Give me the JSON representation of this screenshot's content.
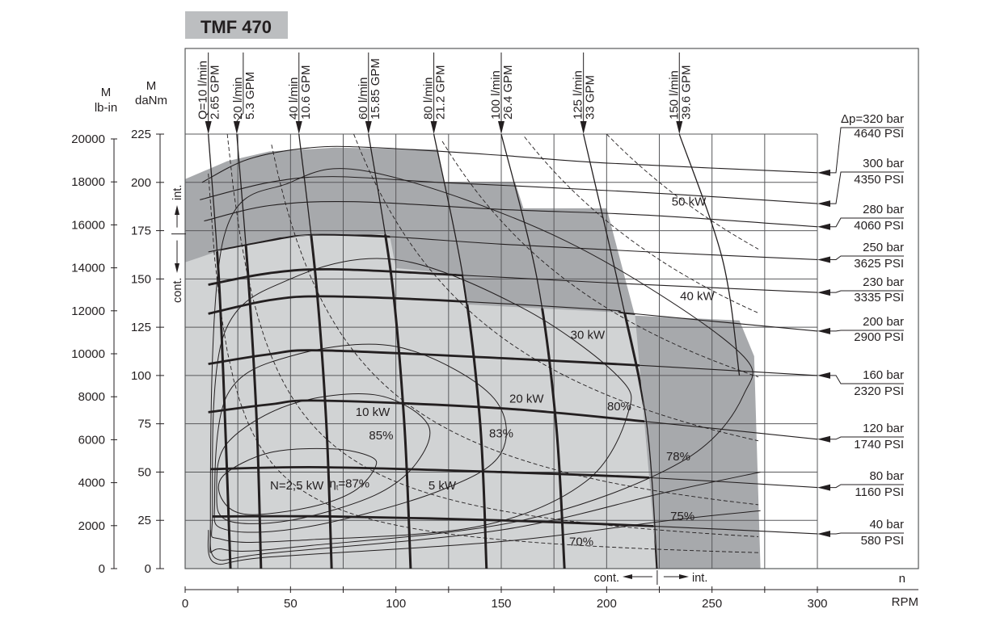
{
  "title": "TMF 470",
  "colors": {
    "intermittent": "#a7a9ac",
    "continuous": "#d1d3d4",
    "grid": "#58595b",
    "line": "#231f20",
    "title_box": "#bcbec0"
  },
  "chart_data": {
    "type": "line",
    "title": "TMF 470",
    "x_axis": {
      "label_top": "n",
      "label": "RPM",
      "range": [
        0,
        300
      ],
      "ticks": [
        0,
        50,
        100,
        150,
        200,
        250,
        300
      ],
      "minor_step": 25,
      "cont_int_split": 224,
      "cont_label": "cont.",
      "int_label": "int."
    },
    "y_axis": {
      "label_top": "M",
      "label": "daNm",
      "range": [
        0,
        225
      ],
      "ticks": [
        0,
        25,
        50,
        75,
        100,
        125,
        150,
        175,
        200,
        225
      ],
      "cont_int_split": 175,
      "cont_label": "cont.",
      "int_label": "int."
    },
    "y_axis_secondary": {
      "label_top": "M",
      "label": "lb-in",
      "range": [
        0,
        20000
      ],
      "ticks": [
        0,
        2000,
        4000,
        6000,
        8000,
        10000,
        12000,
        14000,
        16000,
        18000,
        20000
      ]
    },
    "grid": true,
    "regions": {
      "intermittent": [
        [
          0,
          201.7
        ],
        [
          20,
          211
        ],
        [
          40,
          216
        ],
        [
          71,
          218
        ],
        [
          120,
          217
        ],
        [
          123,
          200
        ],
        [
          156.6,
          200
        ],
        [
          160.5,
          186.6
        ],
        [
          200,
          186.6
        ],
        [
          213.4,
          131
        ],
        [
          263,
          128.5
        ],
        [
          270,
          110
        ],
        [
          273,
          0
        ],
        [
          0,
          0
        ]
      ],
      "continuous": [
        [
          0,
          158.6
        ],
        [
          20,
          166
        ],
        [
          45,
          171.5
        ],
        [
          65,
          173
        ],
        [
          97,
          173
        ],
        [
          100,
          155.6
        ],
        [
          131.7,
          152.3
        ],
        [
          133.6,
          136.8
        ],
        [
          213.4,
          132.2
        ],
        [
          224,
          0
        ],
        [
          0,
          0
        ]
      ]
    },
    "pressure_series": [
      {
        "name": "Δp=320 bar",
        "psi": "4640 PSI",
        "points": [
          [
            8,
            200
          ],
          [
            30,
            212
          ],
          [
            60,
            218
          ],
          [
            90,
            218
          ],
          [
            150,
            214
          ],
          [
            200,
            210
          ],
          [
            300,
            205
          ]
        ]
      },
      {
        "name": "300 bar",
        "psi": "4350 PSI",
        "points": [
          [
            7,
            191
          ],
          [
            40,
            200
          ],
          [
            70,
            203
          ],
          [
            120,
            200
          ],
          [
            160,
            198
          ],
          [
            230,
            194
          ],
          [
            300,
            189
          ]
        ]
      },
      {
        "name": "280 bar",
        "psi": "4060 PSI",
        "points": [
          [
            9,
            180
          ],
          [
            40,
            188
          ],
          [
            80,
            190
          ],
          [
            150,
            186
          ],
          [
            220,
            183
          ],
          [
            300,
            177
          ]
        ]
      },
      {
        "name": "250 bar",
        "psi": "3625 PSI",
        "points": [
          [
            11,
            164
          ],
          [
            40,
            170
          ],
          [
            60,
            173
          ],
          [
            95,
            172
          ],
          [
            150,
            168
          ],
          [
            220,
            164
          ],
          [
            300,
            160
          ]
        ]
      },
      {
        "name": "230 bar",
        "psi": "3335 PSI",
        "points": [
          [
            11,
            147
          ],
          [
            40,
            153
          ],
          [
            70,
            155
          ],
          [
            130,
            152
          ],
          [
            200,
            148
          ],
          [
            300,
            143
          ]
        ]
      },
      {
        "name": "200 bar",
        "psi": "2900 PSI",
        "points": [
          [
            11,
            132
          ],
          [
            40,
            139
          ],
          [
            65,
            141
          ],
          [
            120,
            139
          ],
          [
            200,
            134
          ],
          [
            213,
            132
          ],
          [
            300,
            123
          ]
        ]
      },
      {
        "name": "160 bar",
        "psi": "2320 PSI",
        "points": [
          [
            11,
            106
          ],
          [
            40,
            111
          ],
          [
            65,
            113
          ],
          [
            150,
            109
          ],
          [
            220,
            105
          ],
          [
            300,
            100
          ]
        ]
      },
      {
        "name": "120 bar",
        "psi": "1740 PSI",
        "points": [
          [
            11,
            81
          ],
          [
            40,
            85
          ],
          [
            65,
            87
          ],
          [
            150,
            83
          ],
          [
            220,
            76
          ],
          [
            300,
            67
          ]
        ]
      },
      {
        "name": "80 bar",
        "psi": "1160 PSI",
        "points": [
          [
            12,
            51.5
          ],
          [
            65,
            52.5
          ],
          [
            150,
            50
          ],
          [
            222,
            47
          ],
          [
            300,
            42
          ]
        ]
      },
      {
        "name": "40 bar",
        "psi": "580 PSI",
        "points": [
          [
            13,
            27
          ],
          [
            70,
            27
          ],
          [
            150,
            25
          ],
          [
            222,
            22
          ],
          [
            300,
            18
          ]
        ]
      }
    ],
    "flow_series": [
      {
        "name": "Q=10 l/min",
        "gpm": "2.65 GPM",
        "points": [
          [
            11,
            225
          ],
          [
            16,
            150
          ],
          [
            19,
            75
          ],
          [
            21.5,
            0
          ]
        ]
      },
      {
        "name": "20 l/min",
        "gpm": "5.3 GPM",
        "points": [
          [
            24.5,
            225
          ],
          [
            30,
            150
          ],
          [
            34,
            75
          ],
          [
            36,
            0
          ]
        ]
      },
      {
        "name": "40 l/min",
        "gpm": "10.6 GPM",
        "points": [
          [
            54,
            225
          ],
          [
            62,
            150
          ],
          [
            67,
            75
          ],
          [
            69.5,
            0
          ]
        ]
      },
      {
        "name": "60 l/min",
        "gpm": "15.85 GPM",
        "points": [
          [
            87,
            225
          ],
          [
            98,
            150
          ],
          [
            104,
            75
          ],
          [
            107,
            0
          ]
        ]
      },
      {
        "name": "80 l/min",
        "gpm": "21.2 GPM",
        "points": [
          [
            118,
            225
          ],
          [
            132,
            150
          ],
          [
            140,
            75
          ],
          [
            143,
            0
          ]
        ]
      },
      {
        "name": "100 l/min",
        "gpm": "26.4 GPM",
        "points": [
          [
            150,
            225
          ],
          [
            167,
            150
          ],
          [
            176,
            75
          ],
          [
            180,
            0
          ]
        ]
      },
      {
        "name": "125 l/min",
        "gpm": "33 GPM",
        "points": [
          [
            189,
            225
          ],
          [
            207,
            140
          ],
          [
            219,
            75
          ],
          [
            224,
            0
          ]
        ]
      },
      {
        "name": "150 l/min",
        "gpm": "39.6 GPM",
        "points": [
          [
            234.5,
            225
          ],
          [
            255,
            160
          ],
          [
            263,
            100
          ]
        ]
      }
    ],
    "power_series": [
      {
        "name": "N=2,5 kW",
        "kw": 2.5,
        "label_at": [
          53,
          41
        ]
      },
      {
        "name": "5 kW",
        "kw": 5,
        "label_at": [
          122,
          41
        ]
      },
      {
        "name": "10 kW",
        "kw": 10,
        "label_at": [
          89,
          79
        ]
      },
      {
        "name": "20 kW",
        "kw": 20,
        "label_at": [
          162,
          86
        ]
      },
      {
        "name": "30 kW",
        "kw": 30,
        "label_at": [
          191,
          119
        ]
      },
      {
        "name": "40 kW",
        "kw": 40,
        "label_at": [
          243,
          139
        ]
      },
      {
        "name": "50 kW",
        "kw": 50,
        "label_at": [
          239,
          188
        ]
      }
    ],
    "efficiency_series": [
      {
        "name": "87%",
        "prefix": "η",
        "sub": "t",
        "closed": true,
        "points": [
          [
            18,
            48
          ],
          [
            40,
            60
          ],
          [
            70,
            62
          ],
          [
            88,
            58
          ],
          [
            90,
            52
          ],
          [
            80,
            40
          ],
          [
            60,
            32
          ],
          [
            30,
            28
          ],
          [
            18,
            35
          ]
        ],
        "label_at": [
          78,
          42
        ]
      },
      {
        "name": "85%",
        "closed": true,
        "points": [
          [
            15,
            40
          ],
          [
            20,
            65
          ],
          [
            50,
            85
          ],
          [
            90,
            90
          ],
          [
            115,
            75
          ],
          [
            110,
            55
          ],
          [
            90,
            38
          ],
          [
            50,
            25
          ],
          [
            20,
            25
          ]
        ],
        "label_at": [
          93,
          67
        ]
      },
      {
        "name": "83%",
        "closed": true,
        "points": [
          [
            14,
            35
          ],
          [
            20,
            90
          ],
          [
            50,
            110
          ],
          [
            100,
            115
          ],
          [
            145,
            90
          ],
          [
            150,
            60
          ],
          [
            120,
            40
          ],
          [
            60,
            22
          ],
          [
            20,
            20
          ]
        ],
        "label_at": [
          150,
          68
        ]
      },
      {
        "name": "80%",
        "closed": true,
        "points": [
          [
            13,
            30
          ],
          [
            18,
            120
          ],
          [
            50,
            150
          ],
          [
            100,
            160
          ],
          [
            160,
            135
          ],
          [
            205,
            100
          ],
          [
            210,
            80
          ],
          [
            190,
            45
          ],
          [
            140,
            22
          ],
          [
            60,
            15
          ],
          [
            18,
            15
          ]
        ],
        "label_at": [
          206,
          82
        ]
      },
      {
        "name": "78%",
        "closed": true,
        "points": [
          [
            12,
            25
          ],
          [
            18,
            170
          ],
          [
            50,
            200
          ],
          [
            90,
            205
          ],
          [
            180,
            170
          ],
          [
            260,
            115
          ],
          [
            265,
            90
          ],
          [
            235,
            55
          ],
          [
            160,
            25
          ],
          [
            60,
            12
          ],
          [
            18,
            10
          ]
        ],
        "label_at": [
          234,
          56
        ]
      },
      {
        "name": "75%",
        "closed": false,
        "points": [
          [
            12,
            20
          ],
          [
            15,
            5
          ],
          [
            40,
            8
          ],
          [
            150,
            20
          ],
          [
            230,
            40
          ],
          [
            273,
            50
          ]
        ],
        "label_at": [
          236,
          25
        ]
      },
      {
        "name": "70%",
        "closed": false,
        "points": [
          [
            11,
            20
          ],
          [
            14,
            3
          ],
          [
            40,
            6
          ],
          [
            150,
            14
          ],
          [
            230,
            25
          ],
          [
            273,
            30
          ]
        ],
        "label_at": [
          188,
          12
        ]
      }
    ]
  }
}
